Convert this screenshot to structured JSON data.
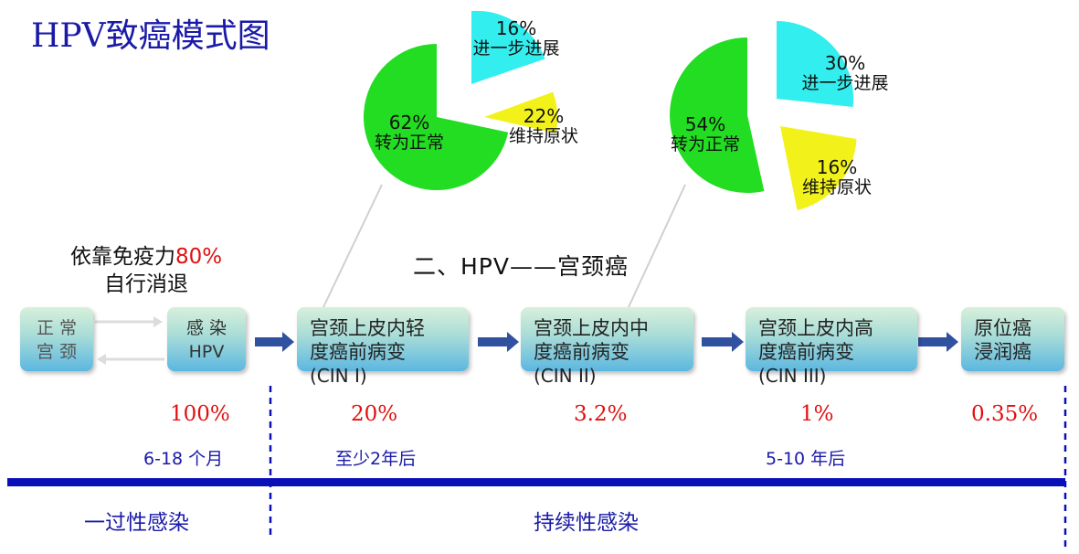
{
  "title": "HPV致癌模式图",
  "section_heading": "二、HPV——宫颈癌",
  "immunity_note": {
    "line1": "依靠免疫力",
    "percent": "80%",
    "line2": "自行消退"
  },
  "stages": [
    {
      "line1": "正 常",
      "line2": "宫 颈"
    },
    {
      "line1": "感 染",
      "line2": "HPV"
    },
    {
      "line1": "宫颈上皮内轻",
      "line2": "度癌前病变",
      "code": "(CIN I)"
    },
    {
      "line1": "宫颈上皮内中",
      "line2": "度癌前病变",
      "code": "(CIN II)"
    },
    {
      "line1": "宫颈上皮内高",
      "line2": "度癌前病变",
      "code": "(CIN III)"
    },
    {
      "line1": "原位癌",
      "line2": "浸润癌"
    }
  ],
  "rates": [
    "100%",
    "20%",
    "3.2%",
    "1%",
    "0.35%"
  ],
  "times": [
    "6-18 个月",
    "至少2年后",
    "5-10 年后"
  ],
  "phases": [
    "一过性感染",
    "持续性感染"
  ],
  "pie_left": {
    "slices": [
      {
        "percent": "62%",
        "label": "转为正常",
        "value": 62,
        "color": "#22dd22"
      },
      {
        "percent": "16%",
        "label": "进一步进展",
        "value": 16,
        "color": "#33eeee"
      },
      {
        "percent": "22%",
        "label": "维持原状",
        "value": 22,
        "color": "#f2f21a"
      }
    ]
  },
  "pie_right": {
    "slices": [
      {
        "percent": "54%",
        "label": "转为正常",
        "value": 54,
        "color": "#22dd22"
      },
      {
        "percent": "30%",
        "label": "进一步进展",
        "value": 30,
        "color": "#33eeee"
      },
      {
        "percent": "16%",
        "label": "维持原状",
        "value": 16,
        "color": "#f2f21a"
      }
    ]
  },
  "colors": {
    "title": "#1a1aa8",
    "rate": "#e01010",
    "arrow": "#3050a0",
    "timeline": "#0a10b8"
  }
}
